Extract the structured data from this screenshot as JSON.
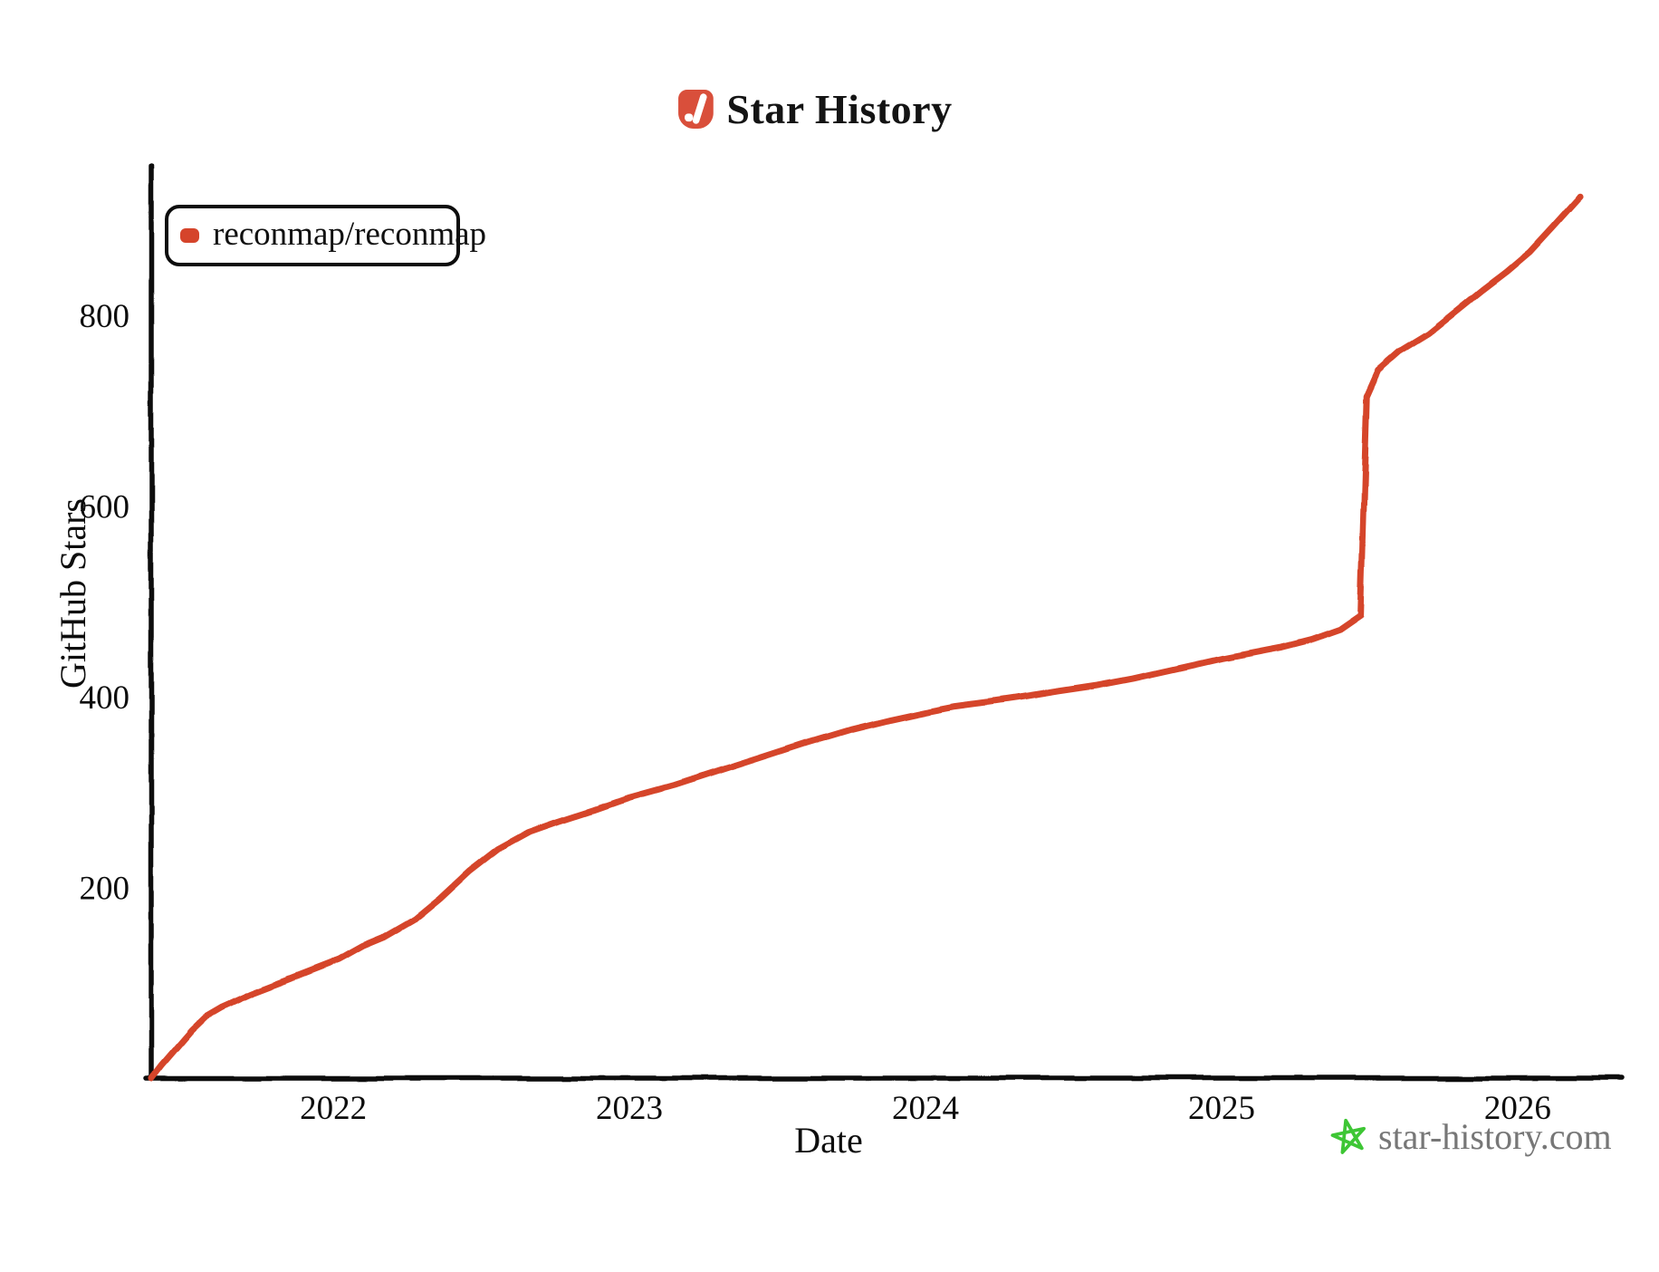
{
  "header": {
    "title": "Star History"
  },
  "legend": {
    "series": [
      {
        "label": "reconmap/reconmap",
        "color": "#d5442b"
      }
    ]
  },
  "watermark": {
    "site": "star-history.com"
  },
  "colors": {
    "line": "#d5442b",
    "axis": "#0d0d0d",
    "logo_red": "#d94f3b",
    "star_green": "#3ec635",
    "watermark_gray": "#777777"
  },
  "icons": {
    "logo": "star-history-logo",
    "watermark_star": "green-sketch-star"
  },
  "chart_data": {
    "type": "line",
    "title": "Star History",
    "xlabel": "Date",
    "ylabel": "GitHub Stars",
    "x_ticks": [
      2022,
      2023,
      2024,
      2025,
      2026
    ],
    "y_ticks": [
      200,
      400,
      600,
      800
    ],
    "xlim": [
      2021.385,
      2026.355
    ],
    "ylim": [
      0,
      957
    ],
    "grid": false,
    "legend_position": "top-left",
    "series": [
      {
        "name": "reconmap/reconmap",
        "color": "#d5442b",
        "points": [
          [
            2021.385,
            0
          ],
          [
            2021.42,
            14
          ],
          [
            2021.47,
            32
          ],
          [
            2021.52,
            50
          ],
          [
            2021.57,
            65
          ],
          [
            2021.62,
            74
          ],
          [
            2021.72,
            88
          ],
          [
            2021.82,
            100
          ],
          [
            2021.92,
            112
          ],
          [
            2022.02,
            124
          ],
          [
            2022.1,
            138
          ],
          [
            2022.17,
            147
          ],
          [
            2022.27,
            165
          ],
          [
            2022.36,
            188
          ],
          [
            2022.46,
            217
          ],
          [
            2022.56,
            241
          ],
          [
            2022.66,
            258
          ],
          [
            2022.76,
            269
          ],
          [
            2022.88,
            281
          ],
          [
            2023.0,
            294
          ],
          [
            2023.15,
            307
          ],
          [
            2023.3,
            322
          ],
          [
            2023.45,
            337
          ],
          [
            2023.6,
            352
          ],
          [
            2023.75,
            366
          ],
          [
            2023.88,
            376
          ],
          [
            2024.0,
            384
          ],
          [
            2024.1,
            390
          ],
          [
            2024.22,
            395
          ],
          [
            2024.33,
            400
          ],
          [
            2024.45,
            406
          ],
          [
            2024.58,
            412
          ],
          [
            2024.7,
            419
          ],
          [
            2024.8,
            426
          ],
          [
            2024.9,
            433
          ],
          [
            2025.0,
            440
          ],
          [
            2025.1,
            446
          ],
          [
            2025.2,
            452
          ],
          [
            2025.3,
            460
          ],
          [
            2025.4,
            471
          ],
          [
            2025.47,
            486
          ],
          [
            2025.49,
            715
          ],
          [
            2025.53,
            743
          ],
          [
            2025.6,
            762
          ],
          [
            2025.7,
            781
          ],
          [
            2025.8,
            806
          ],
          [
            2025.88,
            826
          ],
          [
            2025.96,
            845
          ],
          [
            2026.04,
            866
          ],
          [
            2026.12,
            893
          ],
          [
            2026.21,
            924
          ]
        ]
      }
    ]
  }
}
